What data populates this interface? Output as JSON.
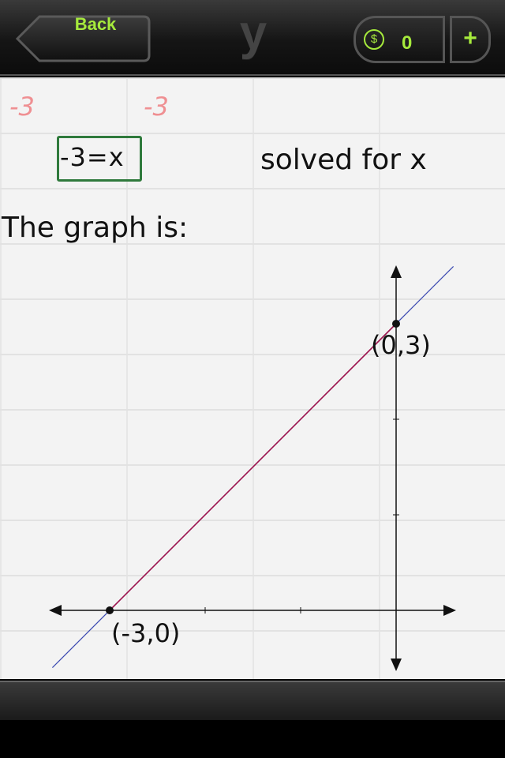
{
  "nav": {
    "back_label": "Back",
    "title": "y",
    "coins": "0",
    "coin_icon": "coin-icon",
    "add_label": "+"
  },
  "steps": {
    "subtract_left": "-3",
    "subtract_right": "-3",
    "result_equation": "-3=x",
    "note": "solved for x",
    "graph_intro": "The graph is:"
  },
  "colors": {
    "accent_green": "#a6ea3c",
    "box_green": "#2f7a3c",
    "step_red": "#ef8f92",
    "line_blue": "#3a48b0",
    "line_crimson": "#a0164e"
  },
  "chart_data": {
    "type": "line",
    "title": "",
    "xlabel": "",
    "ylabel": "",
    "xlim": [
      -3.6,
      0.6
    ],
    "ylim": [
      -0.6,
      3.6
    ],
    "grid": false,
    "line": {
      "slope": 1,
      "intercept": 3
    },
    "points": [
      {
        "x": -3,
        "y": 0,
        "label": "(-3,0)"
      },
      {
        "x": 0,
        "y": 3,
        "label": "(0,3)"
      }
    ],
    "x_ticks": [
      -3,
      -2,
      -1
    ],
    "y_ticks": [
      1,
      2,
      3
    ]
  }
}
